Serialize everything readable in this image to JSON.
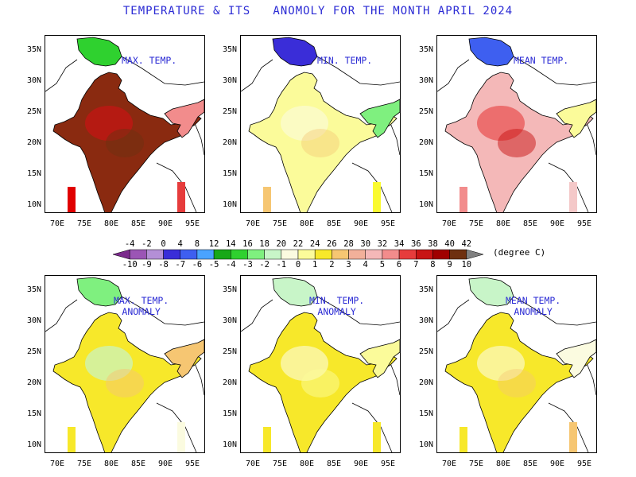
{
  "title": "TEMPERATURE & ITS   ANOMOLY FOR THE MONTH APRIL 2024",
  "unit_label": "(degree C)",
  "lat_ticks": [
    "35N",
    "30N",
    "25N",
    "20N",
    "15N",
    "10N"
  ],
  "lon_ticks": [
    "70E",
    "75E",
    "80E",
    "85E",
    "90E",
    "95E"
  ],
  "colorbar": {
    "temp_labels": [
      "-4",
      "-2",
      "0",
      "4",
      "8",
      "12",
      "14",
      "16",
      "18",
      "20",
      "22",
      "24",
      "26",
      "28",
      "30",
      "32",
      "34",
      "36",
      "38",
      "40",
      "42"
    ],
    "anomaly_labels": [
      "-10",
      "-9",
      "-8",
      "-7",
      "-6",
      "-5",
      "-4",
      "-3",
      "-2",
      "-1",
      "0",
      "1",
      "2",
      "3",
      "4",
      "5",
      "6",
      "7",
      "8",
      "9",
      "10"
    ],
    "colors": [
      "#7b2a8c",
      "#9b55b5",
      "#b48fd6",
      "#3a2dd8",
      "#3e5ff0",
      "#4aa3ff",
      "#18a818",
      "#2fd12f",
      "#7ff07f",
      "#c8f5c8",
      "#fbfbe0",
      "#fbfb9a",
      "#f7e82a",
      "#f6c672",
      "#f2b09a",
      "#f4b8b8",
      "#f28c8c",
      "#e63c3c",
      "#c81414",
      "#a00000",
      "#6e3010",
      "#808080"
    ]
  },
  "panels": [
    {
      "label": "MAX. TEMP.",
      "kind": "max"
    },
    {
      "label": "MIN. TEMP.",
      "kind": "min"
    },
    {
      "label": "MEAN TEMP.",
      "kind": "mean"
    },
    {
      "label": "MAX. TEMP.\nANOMALY",
      "kind": "max_anom"
    },
    {
      "label": "MIN. TEMP.\nANOMALY",
      "kind": "min_anom"
    },
    {
      "label": "MEAN TEMP.\nANOMALY",
      "kind": "mean_anom"
    }
  ]
}
